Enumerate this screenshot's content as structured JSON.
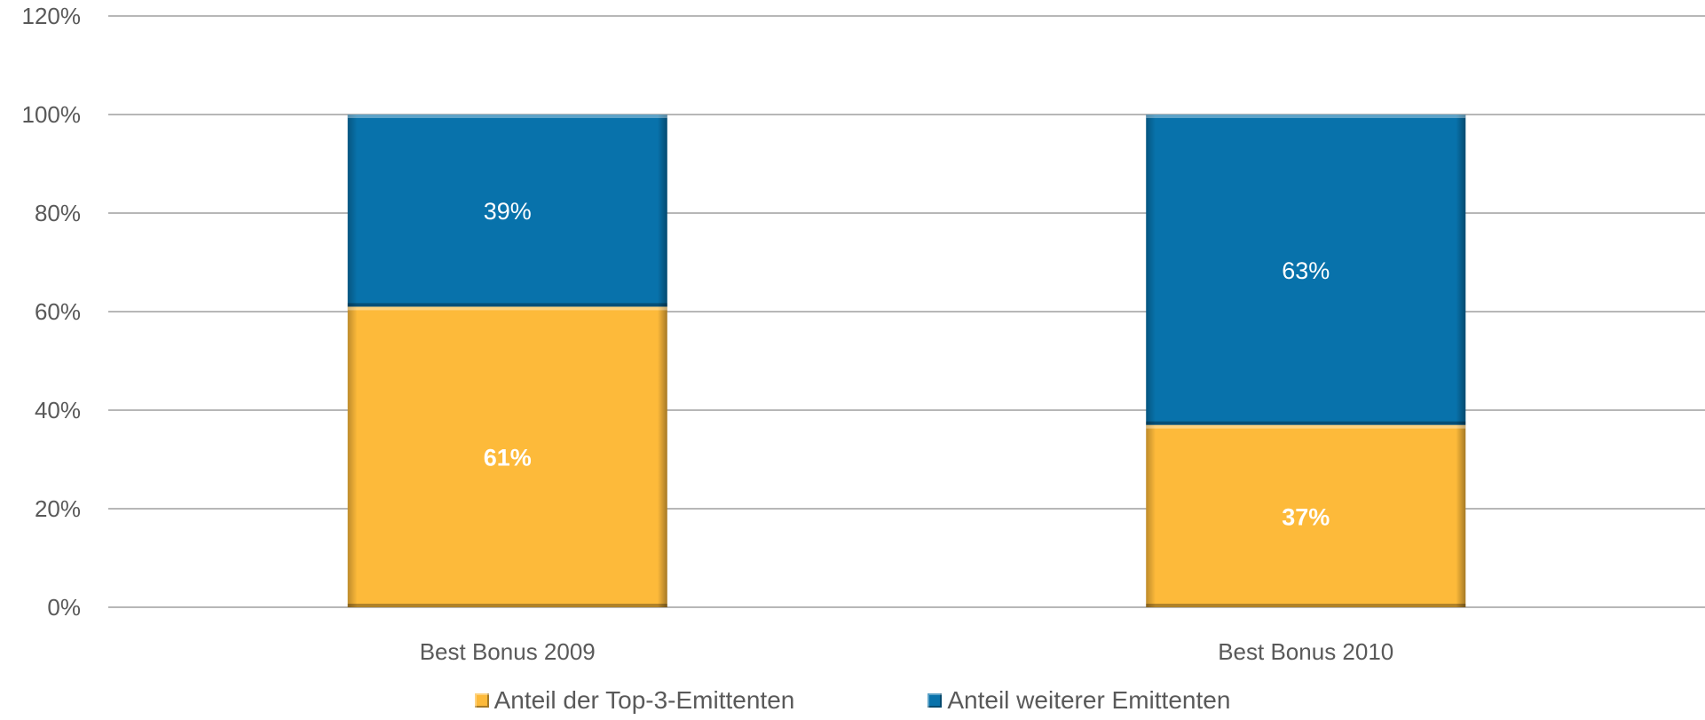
{
  "chart_data": {
    "type": "bar",
    "stacked": true,
    "categories": [
      "Best Bonus 2009",
      "Best Bonus 2010"
    ],
    "series": [
      {
        "name": "Anteil der Top-3-Emittenten",
        "values": [
          61,
          37
        ],
        "labels": [
          "61%",
          "37%"
        ],
        "color": "#FDBA3A",
        "label_bold": true
      },
      {
        "name": "Anteil weiterer Emittenten",
        "values": [
          39,
          63
        ],
        "labels": [
          "39%",
          "63%"
        ],
        "color": "#0872AB",
        "label_bold": false
      }
    ],
    "ylim": [
      0,
      120
    ],
    "yticks": [
      "0%",
      "20%",
      "40%",
      "60%",
      "80%",
      "100%",
      "120%"
    ],
    "grid": true,
    "legend": "bottom"
  }
}
